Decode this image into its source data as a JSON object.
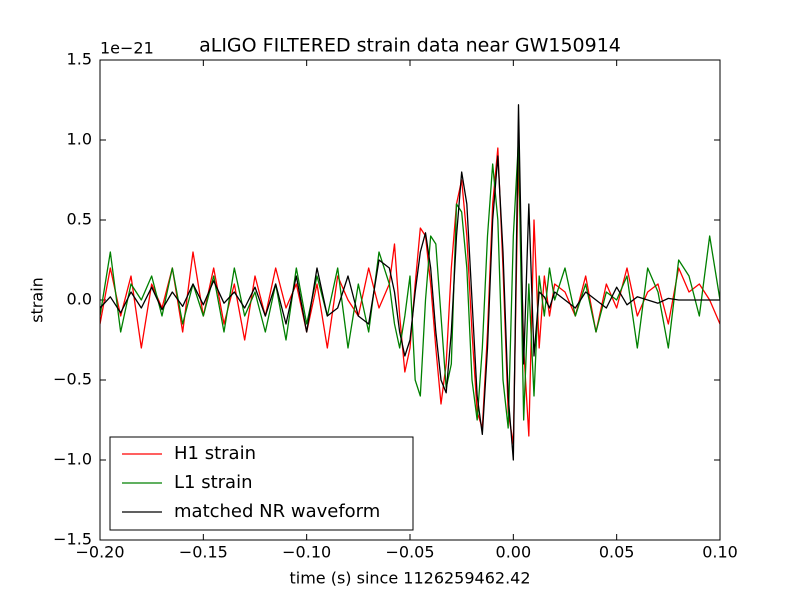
{
  "chart_data": {
    "type": "line",
    "title": "aLIGO FILTERED strain data near GW150914",
    "x_label": "time (s) since 1126259462.42",
    "y_label": "strain",
    "y_offset_label": "1e−21",
    "legend": "lower left",
    "xlim": [
      -0.2,
      0.1
    ],
    "ylim": [
      -1.5,
      1.5
    ],
    "xticks": [
      {
        "value": -0.2,
        "label": "−0.20"
      },
      {
        "value": -0.15,
        "label": "−0.15"
      },
      {
        "value": -0.1,
        "label": "−0.10"
      },
      {
        "value": -0.05,
        "label": "−0.05"
      },
      {
        "value": 0,
        "label": "0.00"
      },
      {
        "value": 0.05,
        "label": "0.05"
      },
      {
        "value": 0.1,
        "label": "0.10"
      }
    ],
    "yticks": [
      {
        "value": -1.5,
        "label": "−1.5"
      },
      {
        "value": -1,
        "label": "−1.0"
      },
      {
        "value": -0.5,
        "label": "−0.5"
      },
      {
        "value": 0,
        "label": "0.0"
      },
      0.5,
      {
        "value": 1,
        "label": "1.0"
      },
      1.5
    ],
    "x": [
      -0.2,
      -0.195,
      -0.19,
      -0.185,
      -0.18,
      -0.175,
      -0.17,
      -0.165,
      -0.16,
      -0.155,
      -0.15,
      -0.145,
      -0.14,
      -0.135,
      -0.13,
      -0.125,
      -0.12,
      -0.115,
      -0.11,
      -0.105,
      -0.1,
      -0.095,
      -0.09,
      -0.085,
      -0.08,
      -0.075,
      -0.07,
      -0.065,
      -0.06,
      -0.0575,
      -0.055,
      -0.0525,
      -0.05,
      -0.0475,
      -0.045,
      -0.0425,
      -0.04,
      -0.0375,
      -0.035,
      -0.0325,
      -0.03,
      -0.0275,
      -0.025,
      -0.0225,
      -0.02,
      -0.0175,
      -0.015,
      -0.0125,
      -0.01,
      -0.0075,
      -0.005,
      -0.0025,
      0,
      0.0025,
      0.005,
      0.0075,
      0.01,
      0.0125,
      0.015,
      0.0175,
      0.02,
      0.025,
      0.03,
      0.035,
      0.04,
      0.045,
      0.05,
      0.055,
      0.06,
      0.065,
      0.07,
      0.075,
      0.08,
      0.085,
      0.09,
      0.095,
      0.1
    ],
    "series": [
      {
        "name": "H1 strain",
        "color": "#ff0000",
        "values": [
          -0.15,
          0.2,
          -0.1,
          0.15,
          -0.3,
          0.1,
          -0.05,
          0.2,
          -0.2,
          0.3,
          -0.1,
          0.2,
          -0.15,
          0.1,
          -0.25,
          0.15,
          -0.1,
          0.2,
          -0.05,
          0.1,
          -0.2,
          0.1,
          -0.3,
          0.15,
          0.0,
          -0.1,
          0.2,
          -0.05,
          0.1,
          0.35,
          -0.1,
          -0.45,
          -0.3,
          0.1,
          0.45,
          0.4,
          0.1,
          -0.3,
          -0.65,
          -0.4,
          0.2,
          0.6,
          0.75,
          0.4,
          -0.2,
          -0.7,
          -0.8,
          -0.2,
          0.6,
          0.95,
          0.2,
          -0.7,
          -0.9,
          0.9,
          -0.3,
          -0.85,
          0.5,
          -0.3,
          0.15,
          -0.1,
          0.1,
          0.05,
          -0.1,
          0.15,
          -0.2,
          0.1,
          -0.05,
          0.2,
          -0.1,
          0.05,
          0.1,
          -0.15,
          0.2,
          0.05,
          0.1,
          0.0,
          -0.15
        ]
      },
      {
        "name": "L1 strain",
        "color": "#008000",
        "values": [
          -0.1,
          0.3,
          -0.2,
          0.1,
          0.0,
          0.15,
          -0.1,
          0.2,
          -0.15,
          0.1,
          -0.1,
          0.15,
          -0.2,
          0.2,
          -0.1,
          0.05,
          -0.2,
          0.1,
          -0.25,
          0.2,
          -0.15,
          0.15,
          -0.1,
          0.2,
          -0.3,
          0.1,
          -0.2,
          0.3,
          0.1,
          -0.15,
          -0.3,
          -0.1,
          0.15,
          -0.5,
          -0.6,
          0.0,
          0.4,
          0.35,
          -0.1,
          -0.55,
          -0.4,
          0.6,
          0.55,
          0.2,
          -0.5,
          -0.75,
          -0.3,
          0.4,
          0.85,
          0.5,
          -0.5,
          -0.8,
          0.4,
          1.0,
          -0.75,
          0.1,
          -0.6,
          0.15,
          -0.1,
          0.2,
          0.0,
          0.2,
          -0.1,
          0.1,
          -0.2,
          0.05,
          0.0,
          0.15,
          -0.3,
          0.2,
          0.05,
          -0.3,
          0.25,
          0.15,
          -0.1,
          0.4,
          0.0
        ]
      },
      {
        "name": "matched NR waveform",
        "color": "#000000",
        "values": [
          -0.05,
          0.02,
          -0.08,
          0.05,
          -0.05,
          0.08,
          -0.06,
          0.05,
          -0.04,
          0.1,
          -0.03,
          0.12,
          -0.02,
          0.05,
          -0.05,
          0.08,
          -0.1,
          0.1,
          -0.15,
          0.15,
          -0.2,
          0.2,
          -0.1,
          -0.05,
          0.15,
          -0.1,
          -0.15,
          0.25,
          0.2,
          0.05,
          -0.2,
          -0.35,
          -0.25,
          0.05,
          0.3,
          0.42,
          0.2,
          -0.2,
          -0.5,
          -0.58,
          -0.2,
          0.4,
          0.8,
          0.6,
          0.0,
          -0.6,
          -0.84,
          -0.3,
          0.5,
          0.9,
          0.3,
          -0.6,
          -1.0,
          1.22,
          -0.4,
          0.6,
          -0.35,
          0.05,
          0.02,
          -0.05,
          0.05,
          0.0,
          -0.05,
          0.05,
          0.0,
          -0.05,
          0.08,
          -0.03,
          0.02,
          0.0,
          -0.02,
          0.01,
          0.0,
          0.0,
          0.0,
          0.0,
          0.0
        ]
      }
    ]
  }
}
